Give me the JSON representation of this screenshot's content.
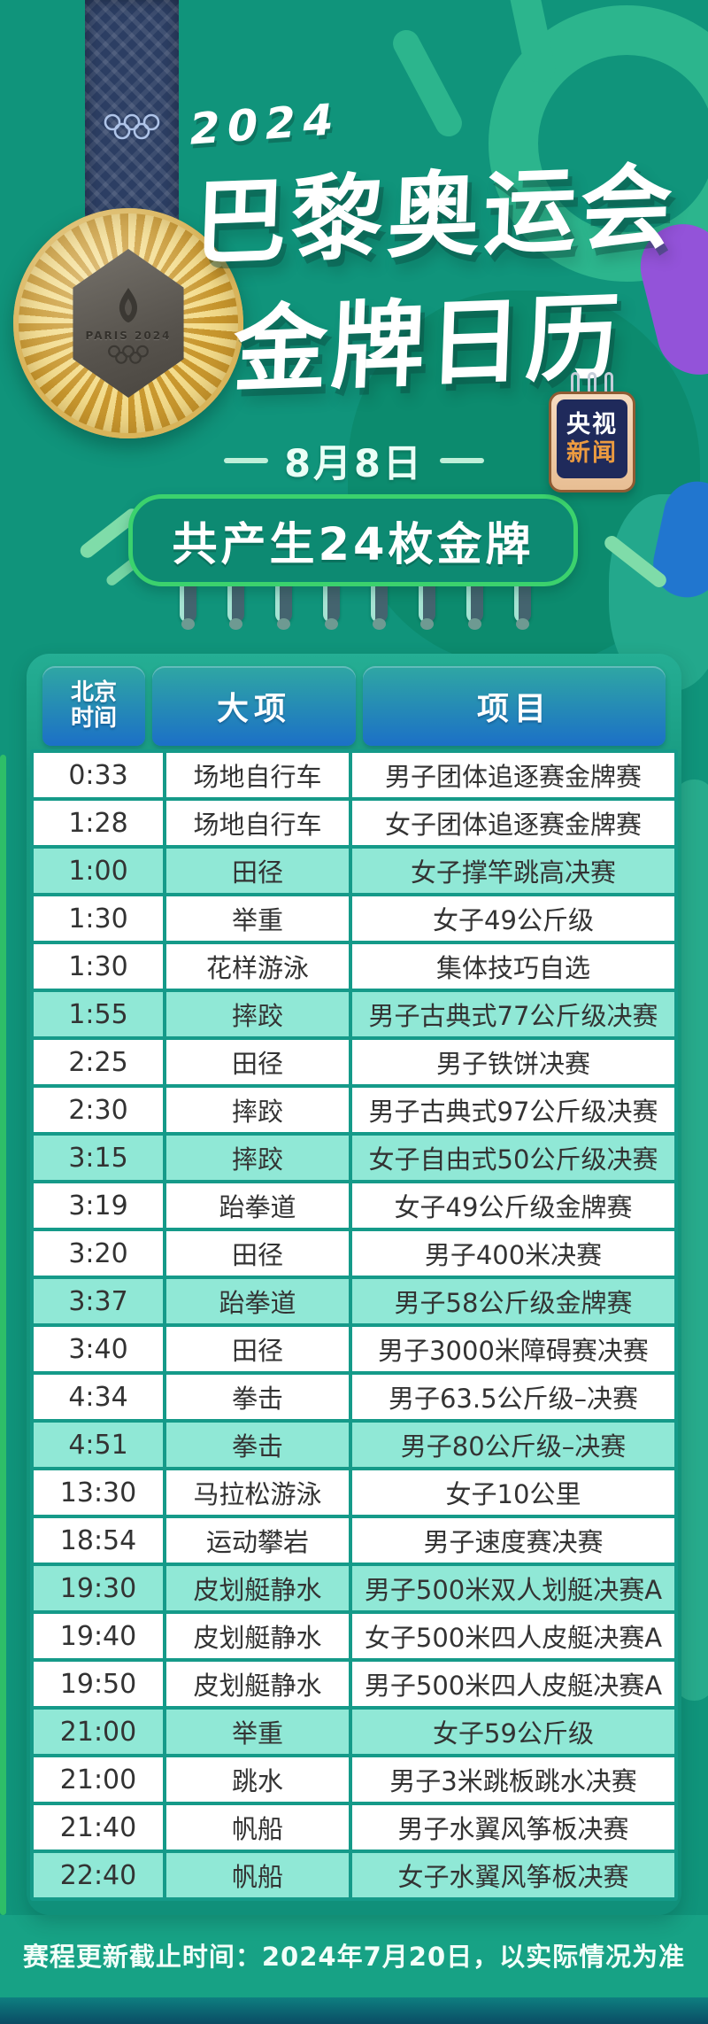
{
  "header": {
    "year": "2024",
    "title_line1": "巴黎奥运会",
    "title_line2": "金牌日历",
    "medal_text": "PARIS 2024",
    "badge_line1": "央视",
    "badge_line2": "新闻",
    "date": "8月8日",
    "banner": "共产生24枚金牌"
  },
  "table": {
    "columns": [
      "北京时间",
      "大项",
      "项目"
    ],
    "rows": [
      {
        "time": "0:33",
        "sport": "场地自行车",
        "event": "男子团体追逐赛金牌赛",
        "highlight": false
      },
      {
        "time": "1:28",
        "sport": "场地自行车",
        "event": "女子团体追逐赛金牌赛",
        "highlight": false
      },
      {
        "time": "1:00",
        "sport": "田径",
        "event": "女子撑竿跳高决赛",
        "highlight": true
      },
      {
        "time": "1:30",
        "sport": "举重",
        "event": "女子49公斤级",
        "highlight": false
      },
      {
        "time": "1:30",
        "sport": "花样游泳",
        "event": "集体技巧自选",
        "highlight": false
      },
      {
        "time": "1:55",
        "sport": "摔跤",
        "event": "男子古典式77公斤级决赛",
        "highlight": true
      },
      {
        "time": "2:25",
        "sport": "田径",
        "event": "男子铁饼决赛",
        "highlight": false
      },
      {
        "time": "2:30",
        "sport": "摔跤",
        "event": "男子古典式97公斤级决赛",
        "highlight": false
      },
      {
        "time": "3:15",
        "sport": "摔跤",
        "event": "女子自由式50公斤级决赛",
        "highlight": true
      },
      {
        "time": "3:19",
        "sport": "跆拳道",
        "event": "女子49公斤级金牌赛",
        "highlight": false
      },
      {
        "time": "3:20",
        "sport": "田径",
        "event": "男子400米决赛",
        "highlight": false
      },
      {
        "time": "3:37",
        "sport": "跆拳道",
        "event": "男子58公斤级金牌赛",
        "highlight": true
      },
      {
        "time": "3:40",
        "sport": "田径",
        "event": "男子3000米障碍赛决赛",
        "highlight": false
      },
      {
        "time": "4:34",
        "sport": "拳击",
        "event": "男子63.5公斤级–决赛",
        "highlight": false
      },
      {
        "time": "4:51",
        "sport": "拳击",
        "event": "男子80公斤级–决赛",
        "highlight": true
      },
      {
        "time": "13:30",
        "sport": "马拉松游泳",
        "event": "女子10公里",
        "highlight": false
      },
      {
        "time": "18:54",
        "sport": "运动攀岩",
        "event": "男子速度赛决赛",
        "highlight": false
      },
      {
        "time": "19:30",
        "sport": "皮划艇静水",
        "event": "男子500米双人划艇决赛A",
        "highlight": true
      },
      {
        "time": "19:40",
        "sport": "皮划艇静水",
        "event": "女子500米四人皮艇决赛A",
        "highlight": false
      },
      {
        "time": "19:50",
        "sport": "皮划艇静水",
        "event": "男子500米四人皮艇决赛A",
        "highlight": false
      },
      {
        "time": "21:00",
        "sport": "举重",
        "event": "女子59公斤级",
        "highlight": true
      },
      {
        "time": "21:00",
        "sport": "跳水",
        "event": "男子3米跳板跳水决赛",
        "highlight": false
      },
      {
        "time": "21:40",
        "sport": "帆船",
        "event": "男子水翼风筝板决赛",
        "highlight": false
      },
      {
        "time": "22:40",
        "sport": "帆船",
        "event": "女子水翼风筝板决赛",
        "highlight": true
      }
    ]
  },
  "footer_note": "赛程更新截止时间：2024年7月20日，以实际情况为准",
  "colors": {
    "background": "#10947B",
    "banner_border": "#3BD26D",
    "header_gradient_top": "#2FA7A3",
    "header_gradient_bottom": "#1C70C7",
    "row_highlight": "#90E8D6",
    "grid_line": "#159A89",
    "badge_navy": "#1F2A5B",
    "badge_orange": "#EC9B40"
  }
}
